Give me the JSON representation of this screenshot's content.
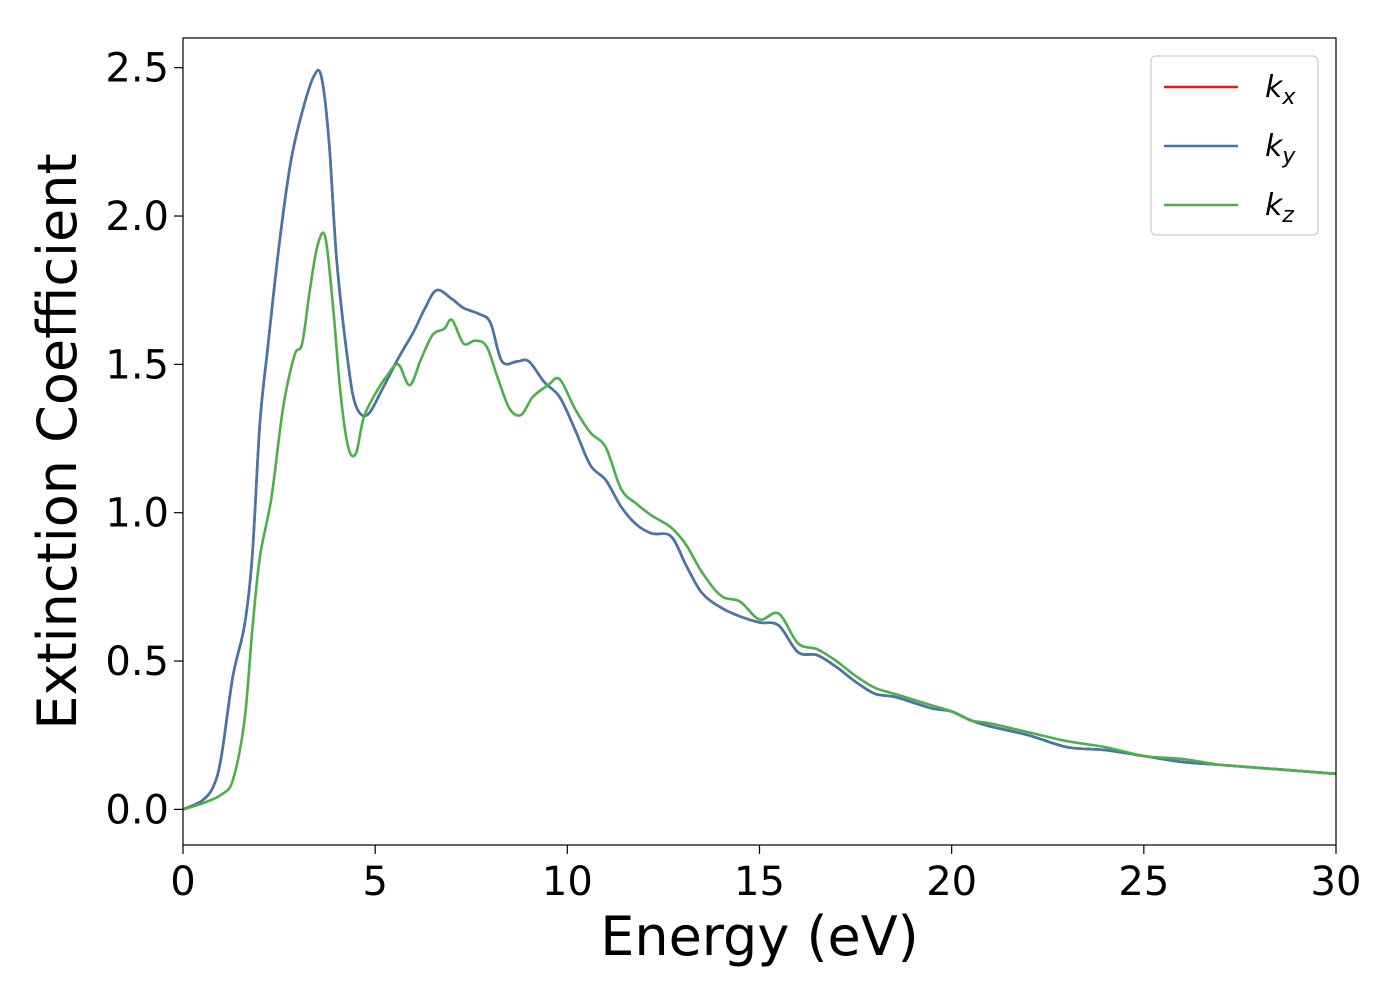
{
  "chart_data": {
    "type": "line",
    "xlabel": "Energy (eV)",
    "ylabel": "Extinction Coefficient",
    "xlim": [
      0,
      30
    ],
    "ylim": [
      -0.12,
      2.6
    ],
    "xticks": [
      "0",
      "5",
      "10",
      "15",
      "20",
      "25",
      "30"
    ],
    "yticks": [
      "0.0",
      "0.5",
      "1.0",
      "1.5",
      "2.0",
      "2.5"
    ],
    "grid": false,
    "legend_position": "top-right",
    "series": [
      {
        "name": "k",
        "subscript": "x",
        "color": "#e41a1c",
        "x": [
          0,
          0.5,
          0.8,
          1.0,
          1.3,
          1.6,
          1.8,
          2.0,
          2.2,
          2.5,
          2.8,
          3.1,
          3.4,
          3.6,
          3.8,
          4.0,
          4.3,
          4.5,
          4.8,
          5.2,
          5.6,
          6.0,
          6.3,
          6.6,
          7.0,
          7.3,
          7.7,
          8.0,
          8.3,
          8.7,
          9.0,
          9.4,
          9.8,
          10.2,
          10.6,
          11.0,
          11.4,
          11.8,
          12.2,
          12.7,
          13.1,
          13.5,
          14.0,
          14.5,
          15.0,
          15.5,
          16.0,
          16.5,
          17.0,
          17.5,
          18.0,
          18.5,
          19.0,
          19.5,
          20.0,
          20.5,
          21.0,
          22.0,
          23.0,
          24.0,
          25.0,
          26.0,
          27.0,
          28.0,
          29.0,
          30.0
        ],
        "values": [
          0.0,
          0.03,
          0.08,
          0.18,
          0.45,
          0.62,
          0.85,
          1.3,
          1.55,
          1.9,
          2.18,
          2.35,
          2.47,
          2.47,
          2.25,
          1.85,
          1.5,
          1.36,
          1.33,
          1.42,
          1.52,
          1.61,
          1.69,
          1.75,
          1.72,
          1.69,
          1.67,
          1.64,
          1.51,
          1.51,
          1.51,
          1.44,
          1.39,
          1.28,
          1.16,
          1.11,
          1.02,
          0.96,
          0.93,
          0.92,
          0.82,
          0.73,
          0.68,
          0.65,
          0.63,
          0.62,
          0.53,
          0.52,
          0.48,
          0.43,
          0.39,
          0.38,
          0.36,
          0.34,
          0.33,
          0.3,
          0.28,
          0.25,
          0.21,
          0.2,
          0.18,
          0.16,
          0.15,
          0.14,
          0.13,
          0.12
        ]
      },
      {
        "name": "k",
        "subscript": "y",
        "color": "#4477aa",
        "x": [
          0,
          0.5,
          0.8,
          1.0,
          1.3,
          1.6,
          1.8,
          2.0,
          2.2,
          2.5,
          2.8,
          3.1,
          3.4,
          3.6,
          3.8,
          4.0,
          4.3,
          4.5,
          4.8,
          5.2,
          5.6,
          6.0,
          6.3,
          6.6,
          7.0,
          7.3,
          7.7,
          8.0,
          8.3,
          8.7,
          9.0,
          9.4,
          9.8,
          10.2,
          10.6,
          11.0,
          11.4,
          11.8,
          12.2,
          12.7,
          13.1,
          13.5,
          14.0,
          14.5,
          15.0,
          15.5,
          16.0,
          16.5,
          17.0,
          17.5,
          18.0,
          18.5,
          19.0,
          19.5,
          20.0,
          20.5,
          21.0,
          22.0,
          23.0,
          24.0,
          25.0,
          26.0,
          27.0,
          28.0,
          29.0,
          30.0
        ],
        "values": [
          0.0,
          0.03,
          0.08,
          0.18,
          0.45,
          0.62,
          0.85,
          1.3,
          1.55,
          1.9,
          2.18,
          2.35,
          2.47,
          2.47,
          2.25,
          1.85,
          1.5,
          1.36,
          1.33,
          1.42,
          1.52,
          1.61,
          1.69,
          1.75,
          1.72,
          1.69,
          1.67,
          1.64,
          1.51,
          1.51,
          1.51,
          1.44,
          1.39,
          1.28,
          1.16,
          1.11,
          1.02,
          0.96,
          0.93,
          0.92,
          0.82,
          0.73,
          0.68,
          0.65,
          0.63,
          0.62,
          0.53,
          0.52,
          0.48,
          0.43,
          0.39,
          0.38,
          0.36,
          0.34,
          0.33,
          0.3,
          0.28,
          0.25,
          0.21,
          0.2,
          0.18,
          0.16,
          0.15,
          0.14,
          0.13,
          0.12
        ]
      },
      {
        "name": "k",
        "subscript": "z",
        "color": "#4daf4a",
        "x": [
          0,
          0.5,
          1.0,
          1.3,
          1.6,
          1.8,
          2.0,
          2.3,
          2.6,
          2.9,
          3.1,
          3.3,
          3.5,
          3.7,
          3.9,
          4.1,
          4.3,
          4.5,
          4.7,
          5.0,
          5.3,
          5.6,
          5.9,
          6.2,
          6.5,
          6.8,
          7.0,
          7.3,
          7.6,
          7.9,
          8.2,
          8.5,
          8.8,
          9.1,
          9.5,
          9.8,
          10.2,
          10.6,
          11.0,
          11.4,
          11.8,
          12.2,
          12.7,
          13.1,
          13.5,
          14.0,
          14.5,
          15.0,
          15.5,
          16.0,
          16.5,
          17.0,
          17.5,
          18.0,
          18.5,
          19.0,
          19.5,
          20.0,
          20.5,
          21.0,
          22.0,
          23.0,
          24.0,
          25.0,
          26.0,
          27.0,
          28.0,
          29.0,
          30.0
        ],
        "values": [
          0.0,
          0.02,
          0.05,
          0.1,
          0.3,
          0.6,
          0.85,
          1.05,
          1.35,
          1.53,
          1.57,
          1.75,
          1.9,
          1.93,
          1.7,
          1.4,
          1.22,
          1.2,
          1.32,
          1.4,
          1.46,
          1.5,
          1.43,
          1.52,
          1.6,
          1.62,
          1.65,
          1.57,
          1.58,
          1.56,
          1.45,
          1.35,
          1.33,
          1.39,
          1.43,
          1.45,
          1.35,
          1.27,
          1.22,
          1.08,
          1.03,
          0.99,
          0.95,
          0.89,
          0.8,
          0.72,
          0.7,
          0.64,
          0.66,
          0.56,
          0.54,
          0.5,
          0.45,
          0.41,
          0.39,
          0.37,
          0.35,
          0.33,
          0.3,
          0.29,
          0.26,
          0.23,
          0.21,
          0.18,
          0.17,
          0.15,
          0.14,
          0.13,
          0.12
        ]
      }
    ]
  }
}
